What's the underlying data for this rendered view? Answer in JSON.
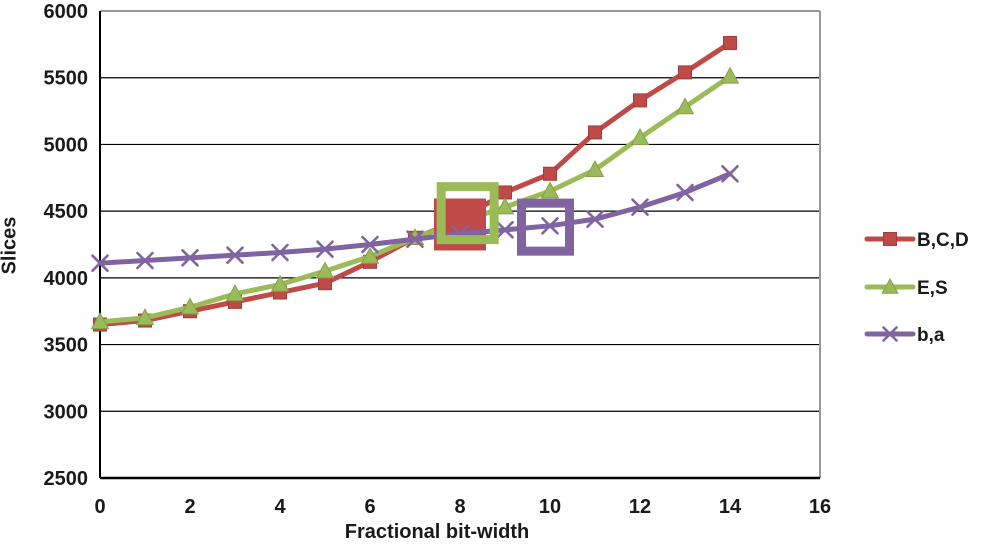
{
  "chart_data": {
    "type": "line",
    "title": "",
    "xlabel": "Fractional bit-width",
    "ylabel": "Slices",
    "xlim": [
      0,
      16
    ],
    "ylim": [
      2500,
      6000
    ],
    "x_ticks": [
      0,
      2,
      4,
      6,
      8,
      10,
      12,
      14,
      16
    ],
    "y_ticks": [
      2500,
      3000,
      3500,
      4000,
      4500,
      5000,
      5500,
      6000
    ],
    "grid": "horizontal-only",
    "legend_position": "right-middle",
    "x": [
      0,
      1,
      2,
      3,
      4,
      5,
      6,
      7,
      8,
      9,
      10,
      11,
      12,
      13,
      14
    ],
    "series": [
      {
        "name": "B,C,D",
        "color": "#be4b48",
        "edge_color": "#a03c39",
        "marker": "square",
        "values": [
          3650,
          3680,
          3750,
          3820,
          3890,
          3960,
          4120,
          4300,
          4430,
          4640,
          4780,
          5090,
          5330,
          5540,
          5760
        ]
      },
      {
        "name": "E,S",
        "color": "#9bbb59",
        "edge_color": "#83a04a",
        "marker": "triangle",
        "values": [
          3670,
          3700,
          3780,
          3880,
          3950,
          4050,
          4160,
          4300,
          4420,
          4530,
          4650,
          4810,
          5050,
          5280,
          5510
        ]
      },
      {
        "name": "b,a",
        "color": "#8064a2",
        "edge_color": "#8064a2",
        "marker": "x",
        "values": [
          4110,
          4130,
          4150,
          4170,
          4190,
          4215,
          4250,
          4290,
          4330,
          4360,
          4390,
          4440,
          4530,
          4640,
          4780
        ]
      }
    ],
    "annotations": [
      {
        "id": "highlight-square-red",
        "style": "filled",
        "color": "#be4b48",
        "x": 8.0,
        "y": 4400,
        "size": 52,
        "stroke": 9
      },
      {
        "id": "highlight-square-green",
        "style": "hollow",
        "color": "#9bbb59",
        "x": 8.17,
        "y": 4485,
        "size": 53,
        "stroke": 9
      },
      {
        "id": "highlight-square-purple",
        "style": "hollow",
        "color": "#8064a2",
        "x": 9.9,
        "y": 4380,
        "size": 48,
        "stroke": 9
      }
    ],
    "colors": {
      "axis": "#000000",
      "plot_border": "#999999",
      "gridline": "#000000",
      "text": "#1a1a1a",
      "background": "#ffffff"
    }
  }
}
